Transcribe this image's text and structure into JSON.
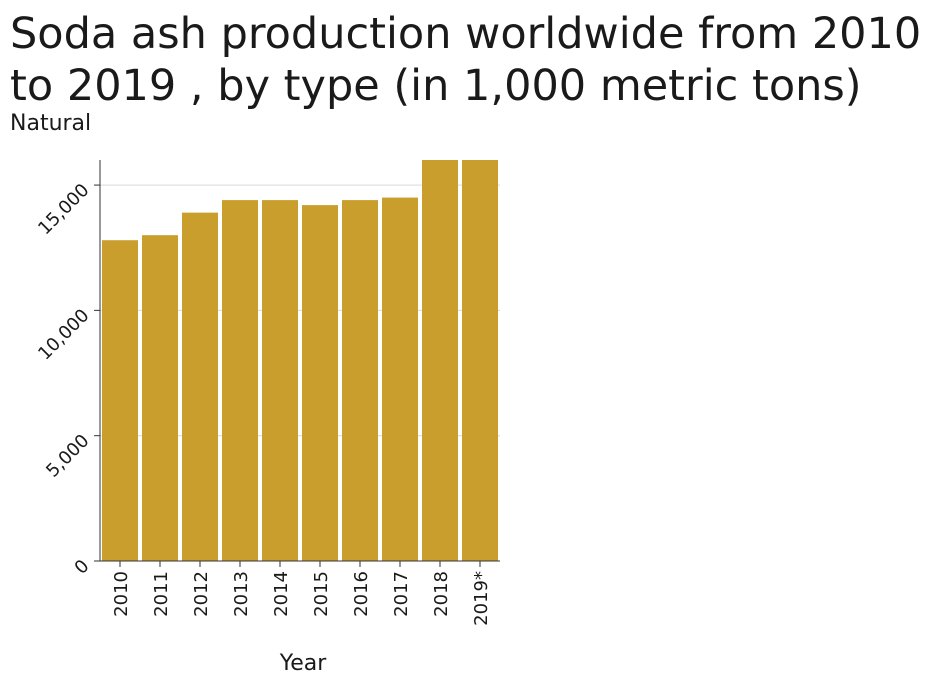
{
  "chart_data": {
    "type": "bar",
    "title": "Soda ash production worldwide from 2010 to 2019 , by type (in 1,000 metric tons)",
    "subtitle": "Natural",
    "xlabel": "Year",
    "ylabel": "",
    "categories": [
      "2010",
      "2011",
      "2012",
      "2013",
      "2014",
      "2015",
      "2016",
      "2017",
      "2018",
      "2019*"
    ],
    "values": [
      12800,
      13000,
      13900,
      14400,
      14400,
      14200,
      14400,
      14500,
      16000,
      16000
    ],
    "ylim": [
      0,
      16000
    ],
    "yticks": [
      0,
      5000,
      10000,
      15000
    ],
    "ytick_labels": [
      "0",
      "5,000",
      "10,000",
      "15,000"
    ],
    "bar_color": "#c99e2c",
    "grid": true
  }
}
